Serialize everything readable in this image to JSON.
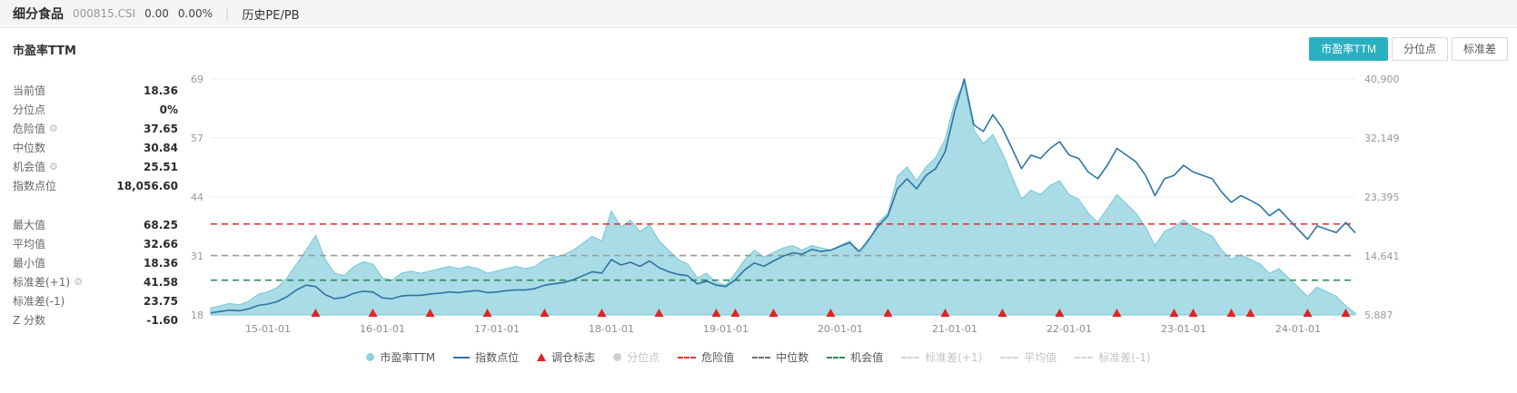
{
  "header": {
    "name": "细分食品",
    "code": "000815.CSI",
    "change": "0.00",
    "change_pct": "0.00%",
    "separator": "|",
    "tab_history": "历史PE/PB"
  },
  "panel": {
    "title": "市盈率TTM",
    "toggle_buttons": [
      {
        "label": "市盈率TTM",
        "active": true
      },
      {
        "label": "分位点",
        "active": false
      },
      {
        "label": "标准差",
        "active": false
      }
    ]
  },
  "colors": {
    "accent_teal": "#2ab1c1",
    "area_fill": "#a9dce6",
    "area_stroke": "#74c7d5",
    "index_line": "#2f74a3",
    "danger_red": "#e03a3a",
    "median_gray": "#9a9a9a",
    "opportunity_green": "#2e8b57",
    "rebalance_red": "#e32222"
  },
  "stats": {
    "group1": [
      {
        "label": "当前值",
        "value": "18.36"
      },
      {
        "label": "分位点",
        "value": "0%"
      },
      {
        "label": "危险值",
        "value": "37.65",
        "gear": true
      },
      {
        "label": "中位数",
        "value": "30.84"
      },
      {
        "label": "机会值",
        "value": "25.51",
        "gear": true
      },
      {
        "label": "指数点位",
        "value": "18,056.60"
      }
    ],
    "group2": [
      {
        "label": "最大值",
        "value": "68.25"
      },
      {
        "label": "平均值",
        "value": "32.66"
      },
      {
        "label": "最小值",
        "value": "18.36"
      },
      {
        "label": "标准差(+1)",
        "value": "41.58",
        "gear": true
      },
      {
        "label": "标准差(-1)",
        "value": "23.75"
      },
      {
        "label": "Z 分数",
        "value": "-1.60"
      }
    ]
  },
  "legend": {
    "items": [
      {
        "label": "市盈率TTM",
        "marker": "dot",
        "color": "#8fd2dd",
        "active": true
      },
      {
        "label": "指数点位",
        "marker": "line",
        "color": "#2f74a3",
        "active": true
      },
      {
        "label": "调仓标志",
        "marker": "triangle",
        "color": "#e32222",
        "active": true
      },
      {
        "label": "分位点",
        "marker": "dot",
        "color": "#cfcfcf",
        "active": false
      },
      {
        "label": "危险值",
        "marker": "dash",
        "color": "#e03a3a",
        "active": true
      },
      {
        "label": "中位数",
        "marker": "dash",
        "color": "#6a7078",
        "active": true
      },
      {
        "label": "机会值",
        "marker": "dash",
        "color": "#2e8b57",
        "active": true
      },
      {
        "label": "标准差(+1)",
        "marker": "dash",
        "color": "#d5d5d5",
        "active": false
      },
      {
        "label": "平均值",
        "marker": "dash",
        "color": "#d5d5d5",
        "active": false
      },
      {
        "label": "标准差(-1)",
        "marker": "dash",
        "color": "#d5d5d5",
        "active": false
      }
    ]
  },
  "chart_data": {
    "type": "area+line",
    "title": "市盈率TTM",
    "x_unit": "month",
    "x_start": "2014-07",
    "x_ticks": [
      "15-01-01",
      "16-01-01",
      "17-01-01",
      "18-01-01",
      "19-01-01",
      "20-01-01",
      "21-01-01",
      "22-01-01",
      "23-01-01",
      "24-01-01"
    ],
    "x_tick_indices": [
      6,
      18,
      30,
      42,
      54,
      66,
      78,
      90,
      102,
      114
    ],
    "left_axis": {
      "label": "市盈率TTM",
      "min": 18,
      "max": 69,
      "ticks": [
        "69",
        "57",
        "44",
        "31",
        "18"
      ]
    },
    "right_axis": {
      "label": "指数点位",
      "min": 5887,
      "max": 40900,
      "ticks": [
        "40,900",
        "32,149",
        "23,395",
        "14,641",
        "5,887"
      ]
    },
    "grid": true,
    "legend_position": "bottom",
    "series": [
      {
        "name": "市盈率TTM",
        "type": "area",
        "axis": "left",
        "color": "#74c7d5",
        "fill": "#a9dce6",
        "values": [
          19.5,
          20,
          20.5,
          20.2,
          21,
          22.5,
          23,
          24,
          26,
          29,
          32,
          35.2,
          30,
          27,
          26.5,
          28.5,
          29.5,
          29,
          26,
          25.5,
          27,
          27.5,
          27,
          27.5,
          28,
          28.5,
          28,
          28.5,
          28,
          27,
          27.5,
          28,
          28.5,
          28,
          28.5,
          30,
          30.5,
          31,
          32,
          33.5,
          35,
          34,
          40.5,
          37,
          38.5,
          36,
          37.5,
          34,
          32,
          30,
          29,
          26,
          27,
          25,
          24.5,
          27,
          30,
          32,
          30.5,
          31.5,
          32.5,
          33,
          32,
          33,
          32.5,
          32,
          33,
          34,
          31,
          34,
          38,
          40,
          48,
          50,
          47,
          50,
          52,
          56,
          64,
          68.25,
          58,
          55,
          57,
          53,
          48,
          43,
          45,
          44,
          46,
          47,
          44,
          43,
          40,
          38,
          41,
          44,
          42,
          40,
          37,
          33,
          36,
          37,
          38.5,
          37,
          36,
          35,
          32,
          30,
          31,
          30,
          29,
          27,
          28,
          26,
          24,
          22,
          24,
          23,
          22,
          20,
          18.36
        ]
      },
      {
        "name": "指数点位",
        "type": "line",
        "axis": "right",
        "color": "#2f74a3",
        "values": [
          6200,
          6400,
          6600,
          6500,
          6800,
          7300,
          7500,
          7900,
          8600,
          9600,
          10300,
          10100,
          8900,
          8300,
          8500,
          9100,
          9400,
          9300,
          8400,
          8300,
          8700,
          8800,
          8800,
          9000,
          9100,
          9300,
          9200,
          9400,
          9500,
          9200,
          9300,
          9500,
          9600,
          9600,
          9800,
          10300,
          10500,
          10700,
          11100,
          11700,
          12300,
          12100,
          14100,
          13300,
          13700,
          13100,
          13900,
          12900,
          12300,
          11900,
          11700,
          10500,
          10900,
          10300,
          10100,
          11100,
          12600,
          13600,
          13100,
          13900,
          14600,
          15100,
          14900,
          15600,
          15300,
          15500,
          16100,
          16600,
          15300,
          17100,
          19100,
          20600,
          24600,
          26100,
          24600,
          26600,
          27600,
          30100,
          36100,
          40900,
          34100,
          33100,
          35600,
          33600,
          30600,
          27600,
          29600,
          29100,
          30600,
          31600,
          29600,
          29100,
          27100,
          26100,
          28100,
          30600,
          29600,
          28600,
          26600,
          23600,
          26100,
          26600,
          28100,
          27100,
          26600,
          26100,
          24100,
          22600,
          23600,
          22900,
          22100,
          20600,
          21600,
          20100,
          18600,
          17100,
          19100,
          18600,
          18100,
          19600,
          18056.6
        ]
      }
    ],
    "reference_lines": [
      {
        "key": "danger",
        "name": "危险值",
        "value": 37.65,
        "color": "#e03a3a"
      },
      {
        "key": "median",
        "name": "中位数",
        "value": 30.84,
        "color": "#9a9a9a"
      },
      {
        "key": "opportunity",
        "name": "机会值",
        "value": 25.51,
        "color": "#2e8b57"
      }
    ],
    "rebalance_marks": [
      11,
      17,
      23,
      29,
      35,
      41,
      47,
      53,
      55,
      59,
      65,
      71,
      77,
      83,
      89,
      95,
      101,
      103,
      107,
      109,
      115,
      119
    ],
    "marker_color": "#e32222"
  }
}
